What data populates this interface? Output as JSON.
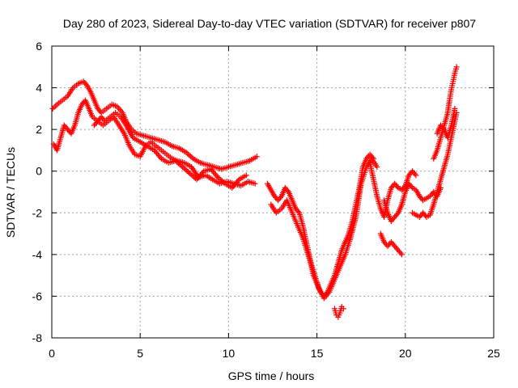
{
  "chart_data": {
    "type": "scatter",
    "title": "Day 280 of 2023, Sidereal Day-to-day VTEC variation (SDTVAR) for receiver p807",
    "xlabel": "GPS time / hours",
    "ylabel": "SDTVAR / TECUs",
    "xlim": [
      0,
      25
    ],
    "ylim": [
      -8,
      6
    ],
    "xticks": [
      0,
      5,
      10,
      15,
      20,
      25
    ],
    "yticks": [
      -8,
      -6,
      -4,
      -2,
      0,
      2,
      4,
      6
    ],
    "grid": true,
    "marker": "+",
    "color": "#ff0000",
    "series": [
      {
        "name": "trace-a",
        "points": [
          [
            0.05,
            3.0
          ],
          [
            0.3,
            3.2
          ],
          [
            0.6,
            3.4
          ],
          [
            0.9,
            3.6
          ],
          [
            1.2,
            4.0
          ],
          [
            1.5,
            4.2
          ],
          [
            1.8,
            4.3
          ],
          [
            2.0,
            4.1
          ],
          [
            2.2,
            3.8
          ],
          [
            2.4,
            3.4
          ],
          [
            2.6,
            3.0
          ],
          [
            2.8,
            2.8
          ],
          [
            3.1,
            3.0
          ],
          [
            3.4,
            3.2
          ],
          [
            3.7,
            3.1
          ],
          [
            4.0,
            2.8
          ],
          [
            4.2,
            2.4
          ],
          [
            4.5,
            2.0
          ],
          [
            4.8,
            1.8
          ],
          [
            5.2,
            1.7
          ],
          [
            5.6,
            1.6
          ],
          [
            6.0,
            1.5
          ],
          [
            6.4,
            1.4
          ],
          [
            6.8,
            1.2
          ],
          [
            7.2,
            1.1
          ],
          [
            7.6,
            0.9
          ],
          [
            8.0,
            0.6
          ],
          [
            8.4,
            0.4
          ],
          [
            8.8,
            0.3
          ],
          [
            9.2,
            0.2
          ],
          [
            9.6,
            0.1
          ],
          [
            10.0,
            0.2
          ],
          [
            10.4,
            0.3
          ],
          [
            10.8,
            0.4
          ],
          [
            11.2,
            0.5
          ],
          [
            11.6,
            0.7
          ]
        ]
      },
      {
        "name": "trace-b",
        "points": [
          [
            0.1,
            1.3
          ],
          [
            0.3,
            1.0
          ],
          [
            0.5,
            1.6
          ],
          [
            0.7,
            2.2
          ],
          [
            0.9,
            2.0
          ],
          [
            1.1,
            1.8
          ],
          [
            1.3,
            2.2
          ],
          [
            1.5,
            2.8
          ],
          [
            1.7,
            3.2
          ],
          [
            1.9,
            3.4
          ],
          [
            2.1,
            3.0
          ],
          [
            2.3,
            2.6
          ],
          [
            2.6,
            2.4
          ],
          [
            2.9,
            2.2
          ],
          [
            3.2,
            2.4
          ],
          [
            3.5,
            2.6
          ],
          [
            3.8,
            2.2
          ],
          [
            4.1,
            1.8
          ],
          [
            4.4,
            1.2
          ],
          [
            4.7,
            0.8
          ],
          [
            5.0,
            0.7
          ],
          [
            5.3,
            1.2
          ],
          [
            5.6,
            1.4
          ],
          [
            5.9,
            1.2
          ],
          [
            6.2,
            1.0
          ],
          [
            6.5,
            0.8
          ],
          [
            6.8,
            0.6
          ],
          [
            7.1,
            0.5
          ],
          [
            7.5,
            0.4
          ],
          [
            7.9,
            0.2
          ],
          [
            8.3,
            -0.3
          ],
          [
            8.7,
            -0.2
          ],
          [
            9.1,
            -0.4
          ],
          [
            9.5,
            -0.6
          ],
          [
            9.9,
            -0.5
          ],
          [
            10.3,
            -0.6
          ],
          [
            10.7,
            -0.7
          ],
          [
            11.1,
            -0.5
          ],
          [
            11.5,
            -0.6
          ]
        ]
      },
      {
        "name": "trace-c",
        "points": [
          [
            2.4,
            2.2
          ],
          [
            2.6,
            2.4
          ],
          [
            2.8,
            2.6
          ],
          [
            3.0,
            2.4
          ],
          [
            3.3,
            2.6
          ],
          [
            3.6,
            2.8
          ],
          [
            3.9,
            2.6
          ],
          [
            4.2,
            2.2
          ],
          [
            4.6,
            1.6
          ],
          [
            5.0,
            1.4
          ],
          [
            5.4,
            1.2
          ],
          [
            5.8,
            1.0
          ],
          [
            6.2,
            0.6
          ],
          [
            6.6,
            0.4
          ],
          [
            7.0,
            0.5
          ],
          [
            7.4,
            0.2
          ],
          [
            7.8,
            -0.1
          ],
          [
            8.2,
            -0.4
          ],
          [
            8.6,
            0.0
          ],
          [
            9.0,
            0.1
          ],
          [
            9.4,
            -0.3
          ],
          [
            9.8,
            -0.6
          ],
          [
            10.2,
            -0.8
          ],
          [
            10.6,
            -0.4
          ],
          [
            11.0,
            -0.2
          ]
        ]
      },
      {
        "name": "trace-d",
        "points": [
          [
            12.2,
            -0.6
          ],
          [
            12.4,
            -0.9
          ],
          [
            12.6,
            -1.2
          ],
          [
            12.8,
            -1.4
          ],
          [
            13.0,
            -1.2
          ],
          [
            13.2,
            -0.8
          ],
          [
            13.4,
            -1.0
          ],
          [
            13.6,
            -1.4
          ],
          [
            13.8,
            -1.8
          ],
          [
            14.0,
            -2.0
          ],
          [
            14.2,
            -2.6
          ],
          [
            14.4,
            -3.4
          ],
          [
            14.6,
            -4.2
          ],
          [
            14.8,
            -5.0
          ],
          [
            15.0,
            -5.4
          ],
          [
            15.2,
            -5.8
          ],
          [
            15.4,
            -6.0
          ],
          [
            15.6,
            -5.8
          ],
          [
            15.8,
            -5.4
          ],
          [
            16.0,
            -5.0
          ],
          [
            16.2,
            -4.4
          ],
          [
            16.4,
            -3.8
          ],
          [
            16.6,
            -3.4
          ],
          [
            16.8,
            -3.0
          ],
          [
            17.0,
            -2.4
          ],
          [
            17.2,
            -1.6
          ],
          [
            17.4,
            -0.8
          ],
          [
            17.6,
            0.2
          ],
          [
            17.8,
            0.6
          ],
          [
            18.0,
            0.8
          ],
          [
            18.2,
            0.6
          ]
        ]
      },
      {
        "name": "trace-e",
        "points": [
          [
            12.4,
            -1.6
          ],
          [
            12.7,
            -2.0
          ],
          [
            13.0,
            -1.8
          ],
          [
            13.3,
            -1.4
          ],
          [
            13.6,
            -2.0
          ],
          [
            13.9,
            -2.6
          ],
          [
            14.2,
            -3.2
          ],
          [
            14.5,
            -4.0
          ],
          [
            14.8,
            -4.8
          ],
          [
            15.1,
            -5.6
          ],
          [
            15.4,
            -6.1
          ],
          [
            15.7,
            -5.8
          ],
          [
            16.0,
            -5.2
          ],
          [
            16.3,
            -4.6
          ],
          [
            16.6,
            -4.0
          ],
          [
            16.9,
            -3.2
          ],
          [
            17.2,
            -2.2
          ],
          [
            17.5,
            -0.6
          ],
          [
            17.8,
            0.2
          ],
          [
            18.1,
            0.6
          ],
          [
            18.4,
            0.2
          ]
        ]
      },
      {
        "name": "trace-f",
        "points": [
          [
            16.0,
            -6.6
          ],
          [
            16.1,
            -6.9
          ],
          [
            16.2,
            -7.0
          ],
          [
            16.3,
            -6.8
          ],
          [
            16.4,
            -6.5
          ],
          [
            16.5,
            -6.6
          ]
        ]
      },
      {
        "name": "trace-g",
        "points": [
          [
            18.0,
            0.4
          ],
          [
            18.2,
            -0.4
          ],
          [
            18.4,
            -1.2
          ],
          [
            18.6,
            -1.8
          ],
          [
            18.8,
            -2.2
          ],
          [
            19.0,
            -1.4
          ],
          [
            19.2,
            -0.8
          ],
          [
            19.4,
            -0.6
          ],
          [
            19.6,
            -0.8
          ],
          [
            19.8,
            -0.9
          ],
          [
            20.0,
            -0.7
          ],
          [
            20.2,
            -0.2
          ],
          [
            20.4,
            0.0
          ],
          [
            20.6,
            -0.2
          ]
        ]
      },
      {
        "name": "trace-h",
        "points": [
          [
            18.6,
            -3.0
          ],
          [
            18.8,
            -3.4
          ],
          [
            19.0,
            -3.6
          ],
          [
            19.2,
            -3.4
          ],
          [
            19.4,
            -3.6
          ],
          [
            19.6,
            -3.8
          ],
          [
            19.8,
            -4.0
          ]
        ]
      },
      {
        "name": "trace-i",
        "points": [
          [
            18.8,
            -1.4
          ],
          [
            19.0,
            -2.0
          ],
          [
            19.2,
            -2.4
          ],
          [
            19.4,
            -2.2
          ],
          [
            19.6,
            -2.0
          ],
          [
            19.8,
            -1.6
          ],
          [
            20.0,
            -1.0
          ],
          [
            20.2,
            -0.6
          ],
          [
            20.4,
            -0.8
          ],
          [
            20.6,
            -0.9
          ],
          [
            20.8,
            -1.2
          ],
          [
            21.0,
            -1.4
          ],
          [
            21.2,
            -1.3
          ],
          [
            21.4,
            -1.2
          ],
          [
            21.6,
            -1.0
          ],
          [
            21.8,
            -1.2
          ],
          [
            22.0,
            -0.8
          ]
        ]
      },
      {
        "name": "trace-j",
        "points": [
          [
            20.4,
            -2.0
          ],
          [
            20.6,
            -2.1
          ],
          [
            20.8,
            -2.2
          ],
          [
            21.0,
            -2.0
          ],
          [
            21.2,
            -2.2
          ],
          [
            21.4,
            -2.1
          ],
          [
            21.6,
            -1.6
          ],
          [
            21.8,
            -1.0
          ],
          [
            22.0,
            -0.4
          ],
          [
            22.2,
            0.2
          ],
          [
            22.4,
            0.8
          ],
          [
            22.6,
            1.6
          ],
          [
            22.8,
            2.4
          ],
          [
            22.9,
            2.8
          ]
        ]
      },
      {
        "name": "trace-k",
        "points": [
          [
            21.6,
            0.6
          ],
          [
            21.8,
            1.0
          ],
          [
            22.0,
            1.6
          ],
          [
            22.2,
            2.2
          ],
          [
            22.4,
            2.8
          ],
          [
            22.5,
            3.4
          ],
          [
            22.6,
            3.9
          ],
          [
            22.7,
            4.3
          ],
          [
            22.8,
            4.7
          ],
          [
            22.9,
            5.0
          ]
        ]
      },
      {
        "name": "trace-l",
        "points": [
          [
            21.8,
            1.8
          ],
          [
            22.0,
            2.2
          ],
          [
            22.2,
            2.0
          ],
          [
            22.4,
            1.6
          ],
          [
            22.6,
            2.2
          ],
          [
            22.8,
            3.0
          ]
        ]
      }
    ]
  }
}
